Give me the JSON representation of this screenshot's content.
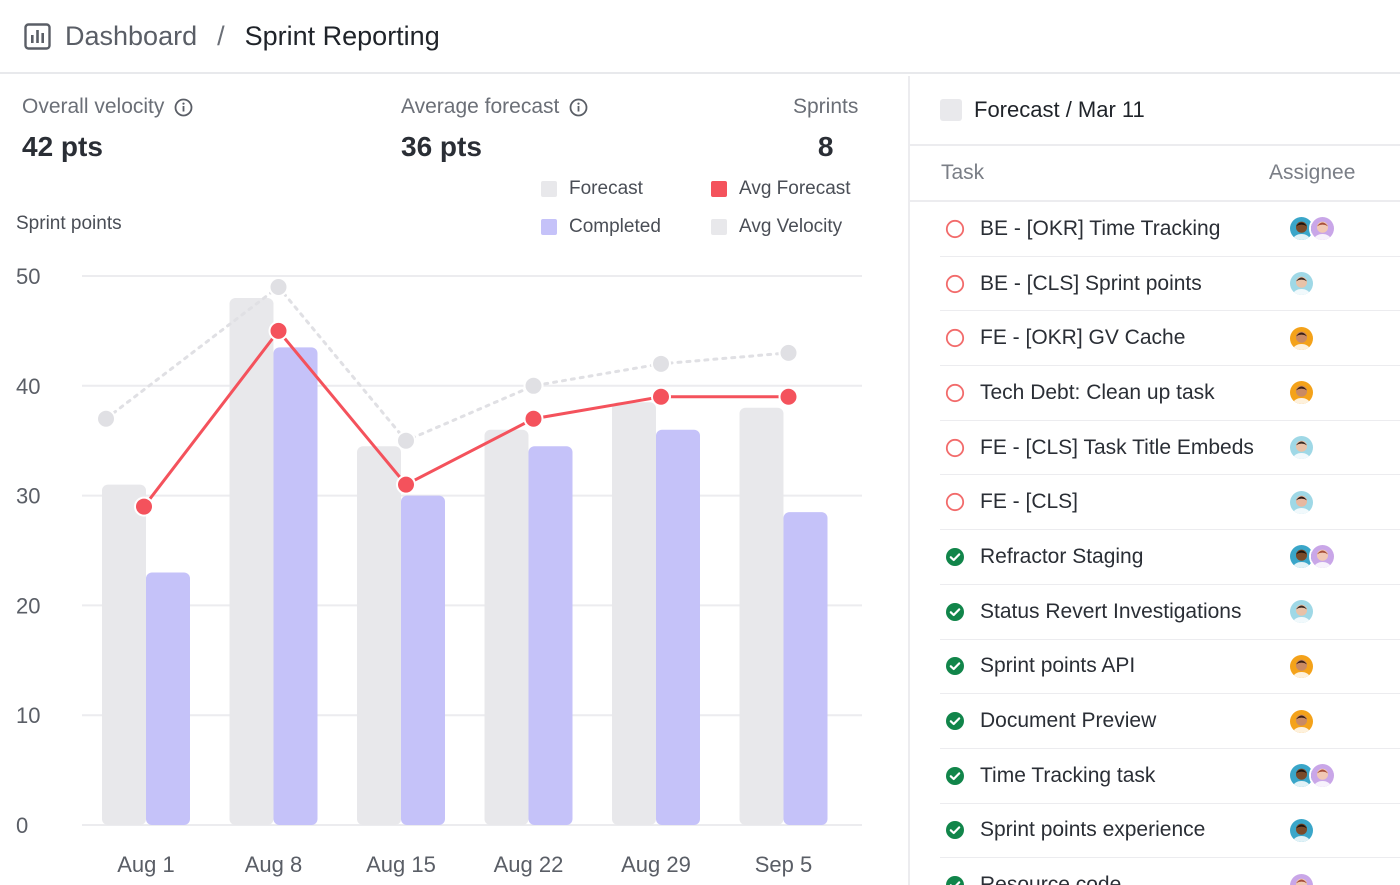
{
  "breadcrumb": {
    "root": "Dashboard",
    "separator": "/",
    "current": "Sprint Reporting"
  },
  "stats": [
    {
      "label": "Overall velocity",
      "value": "42 pts",
      "has_info": true
    },
    {
      "label": "Average forecast",
      "value": "36 pts",
      "has_info": true
    },
    {
      "label": "Sprints",
      "value": "8",
      "has_info": false
    }
  ],
  "legend": [
    {
      "label": "Forecast",
      "color": "#e8e8eb"
    },
    {
      "label": "Avg Forecast",
      "color": "#f4525c"
    },
    {
      "label": "Completed",
      "color": "#c5c2f9"
    },
    {
      "label": "Avg Velocity",
      "color": "#e8e8eb"
    }
  ],
  "chart_data": {
    "type": "bar",
    "ylabel": "Sprint points",
    "ylim": [
      0,
      50
    ],
    "yticks": [
      "50",
      "40",
      "30",
      "20",
      "10",
      "0"
    ],
    "grid": true,
    "categories": [
      "Aug 1",
      "Aug 8",
      "Aug 15",
      "Aug 22",
      "Aug 29",
      "Sep 5"
    ],
    "series": [
      {
        "name": "Forecast",
        "type": "bar",
        "color": "#e8e8eb",
        "values": [
          31,
          48,
          34.5,
          36,
          38.5,
          38
        ]
      },
      {
        "name": "Completed",
        "type": "bar",
        "color": "#c5c2f9",
        "values": [
          23,
          43.5,
          30,
          34.5,
          36,
          28.5
        ]
      },
      {
        "name": "Avg Forecast",
        "type": "line",
        "color": "#f4525c",
        "values": [
          29,
          45,
          31,
          37,
          39,
          39
        ]
      },
      {
        "name": "Avg Velocity",
        "type": "line",
        "style": "dotted",
        "color": "#e0e0e4",
        "values": [
          37,
          49,
          35,
          40,
          42,
          43
        ]
      }
    ]
  },
  "panel": {
    "title": "Forecast / Mar 11",
    "col_task": "Task",
    "col_assignee": "Assignee",
    "tasks": [
      {
        "name": "BE - [OKR] Time Tracking",
        "status": "open",
        "avatars": [
          "person-a",
          "person-b"
        ]
      },
      {
        "name": "BE - [CLS] Sprint points",
        "status": "open",
        "avatars": [
          "person-c"
        ]
      },
      {
        "name": "FE - [OKR] GV Cache",
        "status": "open",
        "avatars": [
          "person-d"
        ]
      },
      {
        "name": "Tech Debt: Clean up task",
        "status": "open",
        "avatars": [
          "person-d"
        ]
      },
      {
        "name": "FE - [CLS] Task Title Embeds",
        "status": "open",
        "avatars": [
          "person-c"
        ]
      },
      {
        "name": "FE - [CLS]",
        "status": "open",
        "avatars": [
          "person-e"
        ]
      },
      {
        "name": "Refractor Staging",
        "status": "done",
        "avatars": [
          "person-a",
          "person-b"
        ]
      },
      {
        "name": "Status Revert Investigations",
        "status": "done",
        "avatars": [
          "person-c"
        ]
      },
      {
        "name": "Sprint points API",
        "status": "done",
        "avatars": [
          "person-d"
        ]
      },
      {
        "name": "Document Preview",
        "status": "done",
        "avatars": [
          "person-d"
        ]
      },
      {
        "name": "Time Tracking task",
        "status": "done",
        "avatars": [
          "person-a",
          "person-b"
        ]
      },
      {
        "name": "Sprint points experience",
        "status": "done",
        "avatars": [
          "person-a"
        ]
      },
      {
        "name": "Resource code",
        "status": "done",
        "avatars": [
          "person-b"
        ]
      }
    ]
  },
  "avatar_colors": {
    "person-a": {
      "bg": "#3aa6c9",
      "skin": "#7a4b2a",
      "hair": "#1c1410"
    },
    "person-b": {
      "bg": "#c9a6e8",
      "skin": "#f1c8b4",
      "hair": "#a8503a"
    },
    "person-c": {
      "bg": "#9fd8e6",
      "skin": "#e8c2a8",
      "hair": "#3a2a22"
    },
    "person-d": {
      "bg": "#f4a21a",
      "skin": "#c98a64",
      "hair": "#3a1f14"
    },
    "person-e": {
      "bg": "#9fd8e6",
      "skin": "#e8b8a0",
      "hair": "#2a1a14"
    }
  },
  "colors": {
    "open_status": "#f26b6b",
    "done_status": "#11854a"
  }
}
